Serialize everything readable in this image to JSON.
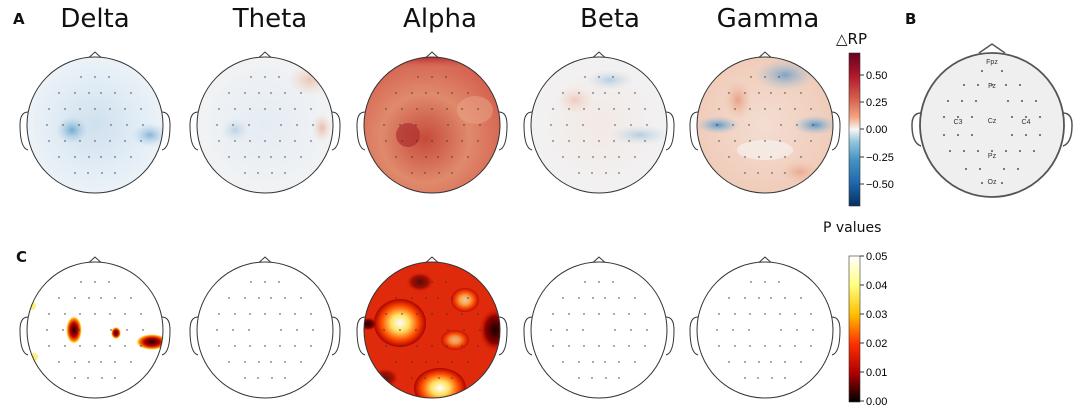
{
  "panels": {
    "a_label": "A",
    "b_label": "B",
    "c_label": "C"
  },
  "bands": [
    "Delta",
    "Theta",
    "Alpha",
    "Beta",
    "Gamma"
  ],
  "colorbar_rp": {
    "title": "△RP",
    "ticks": [
      "0.50",
      "0.25",
      "0.00",
      "−0.25",
      "−0.50"
    ]
  },
  "colorbar_p": {
    "title": "P values",
    "ticks": [
      "0.05",
      "0.04",
      "0.03",
      "0.02",
      "0.01",
      "0.00"
    ]
  },
  "electrodes": {
    "labels": [
      "Fpz",
      "Fz",
      "C3",
      "Cz",
      "C4",
      "Pz",
      "Oz"
    ]
  },
  "colors": {
    "positive": "#b2182b",
    "negative": "#2166ac",
    "neutral": "#f7f7f7",
    "p_low": "#000000",
    "p_mid": "#d7301f",
    "p_high": "#ffffff"
  }
}
